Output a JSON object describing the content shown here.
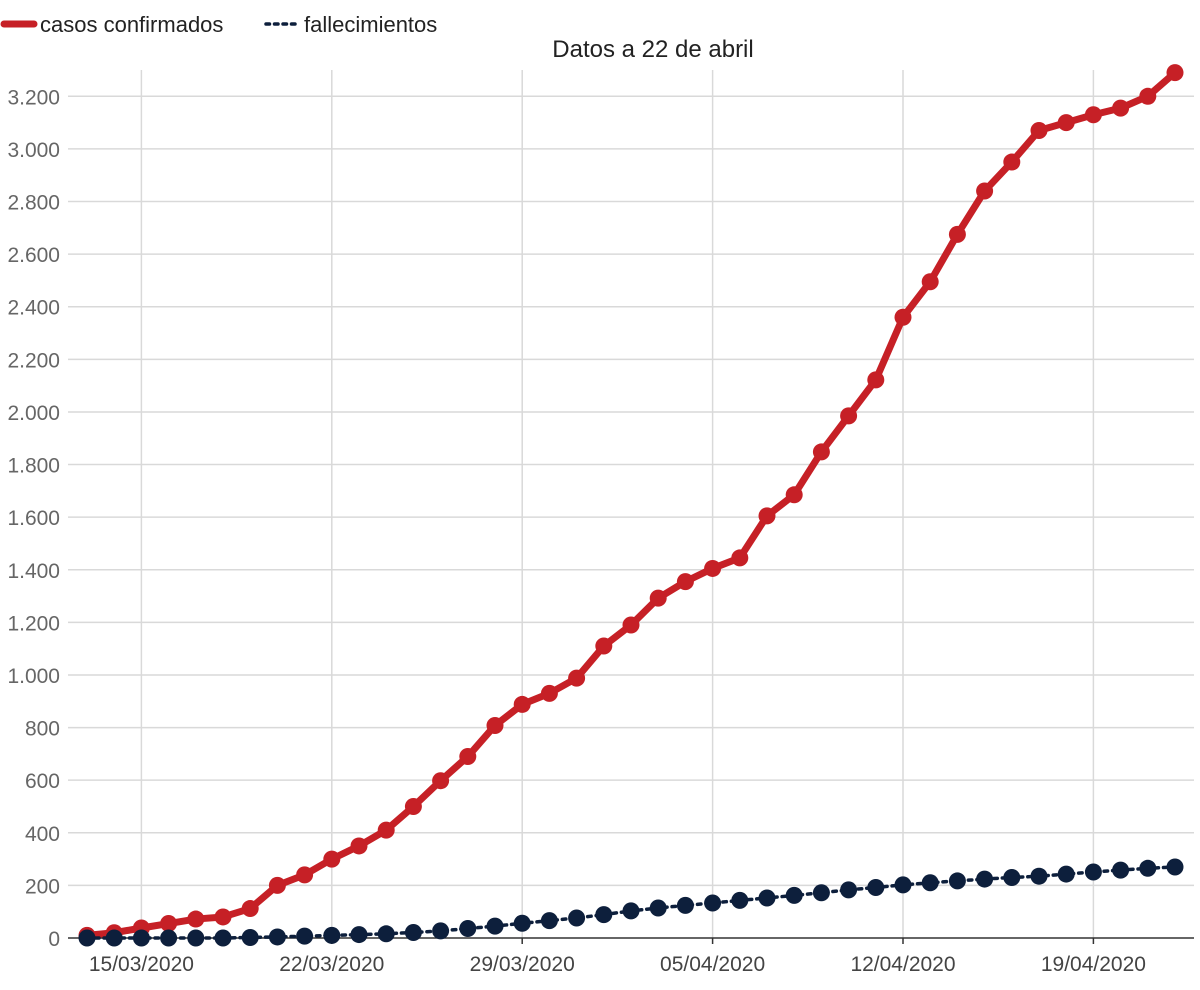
{
  "chart_data": {
    "type": "line",
    "title": "Datos a 22 de abril",
    "xlabel": "",
    "ylabel": "",
    "x": [
      "13/03/2020",
      "14/03/2020",
      "15/03/2020",
      "16/03/2020",
      "17/03/2020",
      "18/03/2020",
      "19/03/2020",
      "20/03/2020",
      "21/03/2020",
      "22/03/2020",
      "23/03/2020",
      "24/03/2020",
      "25/03/2020",
      "26/03/2020",
      "27/03/2020",
      "28/03/2020",
      "29/03/2020",
      "30/03/2020",
      "31/03/2020",
      "01/04/2020",
      "02/04/2020",
      "03/04/2020",
      "04/04/2020",
      "05/04/2020",
      "06/04/2020",
      "07/04/2020",
      "08/04/2020",
      "09/04/2020",
      "10/04/2020",
      "11/04/2020",
      "12/04/2020",
      "13/04/2020",
      "14/04/2020",
      "15/04/2020",
      "16/04/2020",
      "17/04/2020",
      "18/04/2020",
      "19/04/2020",
      "20/04/2020",
      "21/04/2020",
      "22/04/2020"
    ],
    "x_tick_labels": [
      "15/03/2020",
      "22/03/2020",
      "29/03/2020",
      "05/04/2020",
      "12/04/2020",
      "19/04/2020"
    ],
    "ylim": [
      0,
      3300
    ],
    "y_ticks": [
      0,
      200,
      400,
      600,
      800,
      1000,
      1200,
      1400,
      1600,
      1800,
      2000,
      2200,
      2400,
      2600,
      2800,
      3000,
      3200
    ],
    "y_tick_labels": [
      "0",
      "200",
      "400",
      "600",
      "800",
      "1.000",
      "1.200",
      "1.400",
      "1.600",
      "1.800",
      "2.000",
      "2.200",
      "2.400",
      "2.600",
      "2.800",
      "3.000",
      "3.200"
    ],
    "grid": true,
    "legend_position": "top-left",
    "series": [
      {
        "name": "casos confirmados",
        "color": "#c62026",
        "style": "solid",
        "values": [
          10,
          20,
          38,
          55,
          72,
          80,
          112,
          200,
          240,
          300,
          350,
          410,
          500,
          598,
          690,
          808,
          888,
          930,
          988,
          1110,
          1190,
          1292,
          1355,
          1405,
          1445,
          1605,
          1685,
          1848,
          1985,
          2122,
          2360,
          2495,
          2675,
          2840,
          2950,
          3070,
          3100,
          3130,
          3155,
          3200,
          3290
        ]
      },
      {
        "name": "fallecimientos",
        "color": "#0d1f3c",
        "style": "dotted",
        "values": [
          0,
          0,
          0,
          0,
          0,
          0,
          2,
          4,
          7,
          10,
          13,
          16,
          21,
          27,
          36,
          45,
          56,
          66,
          76,
          89,
          103,
          114,
          124,
          133,
          143,
          152,
          162,
          172,
          183,
          192,
          202,
          210,
          217,
          224,
          230,
          235,
          243,
          251,
          258,
          265,
          270
        ]
      }
    ]
  }
}
